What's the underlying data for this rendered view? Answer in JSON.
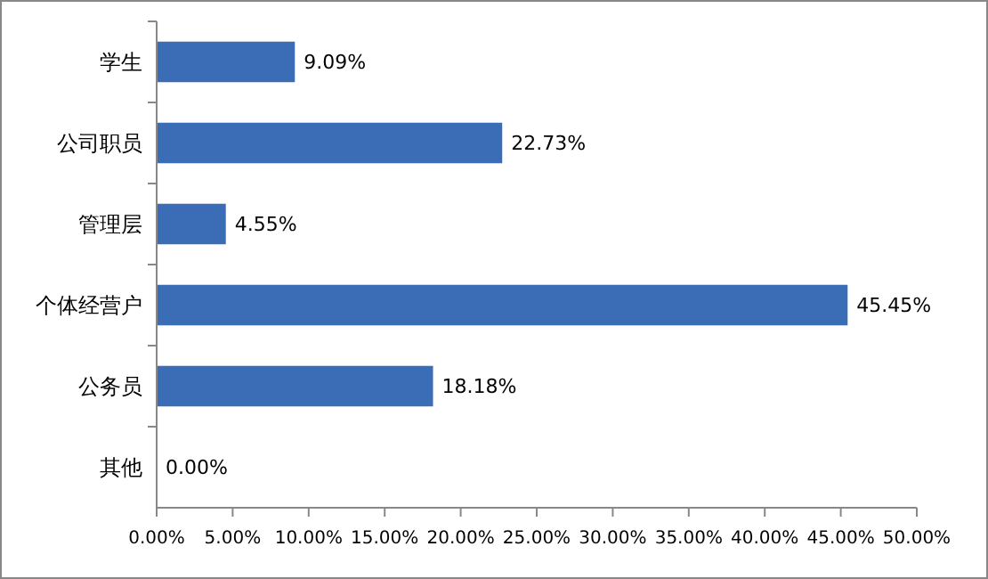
{
  "chart_data": {
    "type": "bar",
    "orientation": "horizontal",
    "categories": [
      "学生",
      "公司职员",
      "管理层",
      "个体经营户",
      "公务员",
      "其他"
    ],
    "values": [
      9.09,
      22.73,
      4.55,
      45.45,
      18.18,
      0
    ],
    "value_labels": [
      "9.09%",
      "22.73%",
      "4.55%",
      "45.45%",
      "18.18%",
      "0.00%"
    ],
    "color": "#3a6db5",
    "xlim": [
      0,
      50
    ],
    "xticks": [
      {
        "value": 0,
        "label": "0.00%"
      },
      {
        "value": 5,
        "label": "5.00%"
      },
      {
        "value": 10,
        "label": "10.00%"
      },
      {
        "value": 15,
        "label": "15.00%"
      },
      {
        "value": 20,
        "label": "20.00%"
      },
      {
        "value": 25,
        "label": "25.00%"
      },
      {
        "value": 30,
        "label": "30.00%"
      },
      {
        "value": 35,
        "label": "35.00%"
      },
      {
        "value": 40,
        "label": "40.00%"
      },
      {
        "value": 45,
        "label": "45.00%"
      },
      {
        "value": 50,
        "label": "50.00%"
      }
    ],
    "grid": false
  }
}
